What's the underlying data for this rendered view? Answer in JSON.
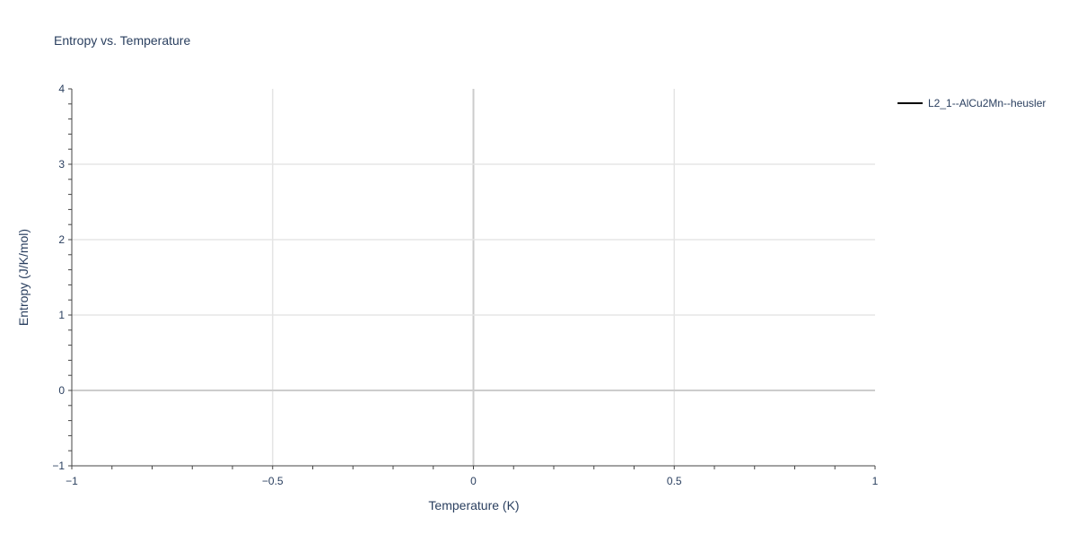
{
  "chart_data": {
    "type": "line",
    "title": "Entropy vs. Temperature",
    "xlabel": "Temperature (K)",
    "ylabel": "Entropy (J/K/mol)",
    "xlim": [
      -1,
      1
    ],
    "ylim": [
      -1,
      4
    ],
    "x_ticks": [
      -1,
      -0.5,
      0,
      0.5,
      1
    ],
    "x_tick_labels": [
      "−1",
      "−0.5",
      "0",
      "0.5",
      "1"
    ],
    "y_ticks": [
      -1,
      0,
      1,
      2,
      3,
      4
    ],
    "y_tick_labels": [
      "−1",
      "0",
      "1",
      "2",
      "3",
      "4"
    ],
    "x_minor_step": 0.1,
    "y_minor_step": 0.2,
    "grid": true,
    "legend_position": "top-right",
    "series": [
      {
        "name": "L2_1--AlCu2Mn--heusler",
        "color": "#000000",
        "x": [],
        "y": []
      }
    ]
  }
}
